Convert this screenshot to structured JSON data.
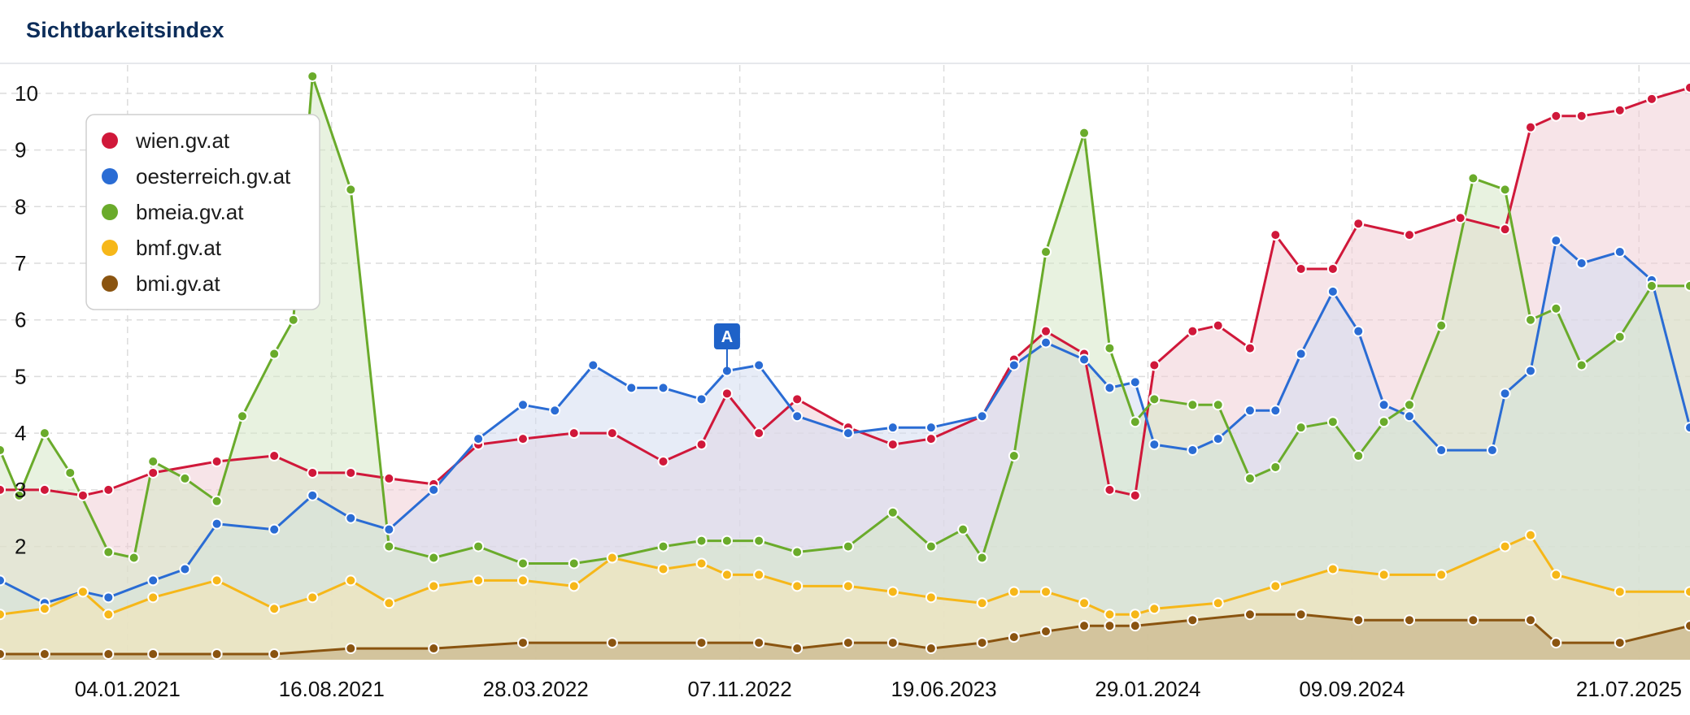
{
  "header": {
    "title": "Sichtbarkeitsindex"
  },
  "chart_data": {
    "type": "area",
    "title": "Sichtbarkeitsindex",
    "xlabel": "",
    "ylabel": "",
    "x_start": "2020-08-17",
    "x_end": "2025-09-15",
    "x_ticks": [
      "04.01.2021",
      "16.08.2021",
      "28.03.2022",
      "07.11.2022",
      "19.06.2023",
      "29.01.2024",
      "09.09.2024",
      "21.07.2025"
    ],
    "y_ticks": [
      2,
      3,
      4,
      5,
      6,
      7,
      8,
      9,
      10
    ],
    "ylim": [
      0,
      10.5
    ],
    "grid": true,
    "legend_position": "top-left",
    "annotations": [
      {
        "label": "A",
        "date": "2022-10-24",
        "series": "oesterreich.gv.at"
      }
    ],
    "series": [
      {
        "name": "wien.gv.at",
        "color": "#d0183a",
        "fill": "#f0cdd5",
        "points": [
          [
            "2020-08-17",
            3.0
          ],
          [
            "2020-10-05",
            3.0
          ],
          [
            "2020-11-16",
            2.9
          ],
          [
            "2020-12-14",
            3.0
          ],
          [
            "2021-02-01",
            3.3
          ],
          [
            "2021-04-12",
            3.5
          ],
          [
            "2021-06-14",
            3.6
          ],
          [
            "2021-07-26",
            3.3
          ],
          [
            "2021-09-06",
            3.3
          ],
          [
            "2021-10-18",
            3.2
          ],
          [
            "2021-12-06",
            3.1
          ],
          [
            "2022-01-24",
            3.8
          ],
          [
            "2022-03-14",
            3.9
          ],
          [
            "2022-05-09",
            4.0
          ],
          [
            "2022-06-20",
            4.0
          ],
          [
            "2022-08-15",
            3.5
          ],
          [
            "2022-09-26",
            3.8
          ],
          [
            "2022-10-24",
            4.7
          ],
          [
            "2022-11-28",
            4.0
          ],
          [
            "2023-01-09",
            4.6
          ],
          [
            "2023-03-06",
            4.1
          ],
          [
            "2023-04-24",
            3.8
          ],
          [
            "2023-06-05",
            3.9
          ],
          [
            "2023-07-31",
            4.3
          ],
          [
            "2023-09-04",
            5.3
          ],
          [
            "2023-10-09",
            5.8
          ],
          [
            "2023-11-20",
            5.4
          ],
          [
            "2023-12-18",
            3.0
          ],
          [
            "2024-01-15",
            2.9
          ],
          [
            "2024-02-05",
            5.2
          ],
          [
            "2024-03-18",
            5.8
          ],
          [
            "2024-04-15",
            5.9
          ],
          [
            "2024-05-20",
            5.5
          ],
          [
            "2024-06-17",
            7.5
          ],
          [
            "2024-07-15",
            6.9
          ],
          [
            "2024-08-19",
            6.9
          ],
          [
            "2024-09-16",
            7.7
          ],
          [
            "2024-11-11",
            7.5
          ],
          [
            "2025-01-06",
            7.8
          ],
          [
            "2025-02-24",
            7.6
          ],
          [
            "2025-03-24",
            9.4
          ],
          [
            "2025-04-21",
            9.6
          ],
          [
            "2025-05-19",
            9.6
          ],
          [
            "2025-06-30",
            9.7
          ],
          [
            "2025-08-04",
            9.9
          ],
          [
            "2025-09-15",
            10.1
          ]
        ]
      },
      {
        "name": "oesterreich.gv.at",
        "color": "#2a6cd4",
        "fill": "#d3dcf1",
        "points": [
          [
            "2020-08-17",
            1.4
          ],
          [
            "2020-10-05",
            1.0
          ],
          [
            "2020-11-16",
            1.2
          ],
          [
            "2020-12-14",
            1.1
          ],
          [
            "2021-02-01",
            1.4
          ],
          [
            "2021-03-08",
            1.6
          ],
          [
            "2021-04-12",
            2.4
          ],
          [
            "2021-06-14",
            2.3
          ],
          [
            "2021-07-26",
            2.9
          ],
          [
            "2021-09-06",
            2.5
          ],
          [
            "2021-10-18",
            2.3
          ],
          [
            "2021-12-06",
            3.0
          ],
          [
            "2022-01-24",
            3.9
          ],
          [
            "2022-03-14",
            4.5
          ],
          [
            "2022-04-18",
            4.4
          ],
          [
            "2022-05-30",
            5.2
          ],
          [
            "2022-07-11",
            4.8
          ],
          [
            "2022-08-15",
            4.8
          ],
          [
            "2022-09-26",
            4.6
          ],
          [
            "2022-10-24",
            5.1
          ],
          [
            "2022-11-28",
            5.2
          ],
          [
            "2023-01-09",
            4.3
          ],
          [
            "2023-03-06",
            4.0
          ],
          [
            "2023-04-24",
            4.1
          ],
          [
            "2023-06-05",
            4.1
          ],
          [
            "2023-07-31",
            4.3
          ],
          [
            "2023-09-04",
            5.2
          ],
          [
            "2023-10-09",
            5.6
          ],
          [
            "2023-11-20",
            5.3
          ],
          [
            "2023-12-18",
            4.8
          ],
          [
            "2024-01-15",
            4.9
          ],
          [
            "2024-02-05",
            3.8
          ],
          [
            "2024-03-18",
            3.7
          ],
          [
            "2024-04-15",
            3.9
          ],
          [
            "2024-05-20",
            4.4
          ],
          [
            "2024-06-17",
            4.4
          ],
          [
            "2024-07-15",
            5.4
          ],
          [
            "2024-08-19",
            6.5
          ],
          [
            "2024-09-16",
            5.8
          ],
          [
            "2024-10-14",
            4.5
          ],
          [
            "2024-11-11",
            4.3
          ],
          [
            "2024-12-16",
            3.7
          ],
          [
            "2025-02-10",
            3.7
          ],
          [
            "2025-02-24",
            4.7
          ],
          [
            "2025-03-24",
            5.1
          ],
          [
            "2025-04-21",
            7.4
          ],
          [
            "2025-05-19",
            7.0
          ],
          [
            "2025-06-30",
            7.2
          ],
          [
            "2025-08-04",
            6.7
          ],
          [
            "2025-09-15",
            4.1
          ]
        ]
      },
      {
        "name": "bmeia.gv.at",
        "color": "#6aab2b",
        "fill": "#d6e8c6",
        "points": [
          [
            "2020-08-17",
            3.7
          ],
          [
            "2020-09-07",
            2.9
          ],
          [
            "2020-10-05",
            4.0
          ],
          [
            "2020-11-02",
            3.3
          ],
          [
            "2020-12-14",
            1.9
          ],
          [
            "2021-01-11",
            1.8
          ],
          [
            "2021-02-01",
            3.5
          ],
          [
            "2021-03-08",
            3.2
          ],
          [
            "2021-04-12",
            2.8
          ],
          [
            "2021-05-10",
            4.3
          ],
          [
            "2021-06-14",
            5.4
          ],
          [
            "2021-07-05",
            6.0
          ],
          [
            "2021-07-26",
            10.3
          ],
          [
            "2021-09-06",
            8.3
          ],
          [
            "2021-10-18",
            2.0
          ],
          [
            "2021-12-06",
            1.8
          ],
          [
            "2022-01-24",
            2.0
          ],
          [
            "2022-03-14",
            1.7
          ],
          [
            "2022-05-09",
            1.7
          ],
          [
            "2022-06-20",
            1.8
          ],
          [
            "2022-08-15",
            2.0
          ],
          [
            "2022-09-26",
            2.1
          ],
          [
            "2022-10-24",
            2.1
          ],
          [
            "2022-11-28",
            2.1
          ],
          [
            "2023-01-09",
            1.9
          ],
          [
            "2023-03-06",
            2.0
          ],
          [
            "2023-04-24",
            2.6
          ],
          [
            "2023-06-05",
            2.0
          ],
          [
            "2023-07-10",
            2.3
          ],
          [
            "2023-07-31",
            1.8
          ],
          [
            "2023-09-04",
            3.6
          ],
          [
            "2023-10-09",
            7.2
          ],
          [
            "2023-11-20",
            9.3
          ],
          [
            "2023-12-18",
            5.5
          ],
          [
            "2024-01-15",
            4.2
          ],
          [
            "2024-02-05",
            4.6
          ],
          [
            "2024-03-18",
            4.5
          ],
          [
            "2024-04-15",
            4.5
          ],
          [
            "2024-05-20",
            3.2
          ],
          [
            "2024-06-17",
            3.4
          ],
          [
            "2024-07-15",
            4.1
          ],
          [
            "2024-08-19",
            4.2
          ],
          [
            "2024-09-16",
            3.6
          ],
          [
            "2024-10-14",
            4.2
          ],
          [
            "2024-11-11",
            4.5
          ],
          [
            "2024-12-16",
            5.9
          ],
          [
            "2025-01-20",
            8.5
          ],
          [
            "2025-02-24",
            8.3
          ],
          [
            "2025-03-24",
            6.0
          ],
          [
            "2025-04-21",
            6.2
          ],
          [
            "2025-05-19",
            5.2
          ],
          [
            "2025-06-30",
            5.7
          ],
          [
            "2025-08-04",
            6.6
          ],
          [
            "2025-09-15",
            6.6
          ]
        ]
      },
      {
        "name": "bmf.gv.at",
        "color": "#f6b719",
        "fill": "#f6e6b6",
        "points": [
          [
            "2020-08-17",
            0.8
          ],
          [
            "2020-10-05",
            0.9
          ],
          [
            "2020-11-16",
            1.2
          ],
          [
            "2020-12-14",
            0.8
          ],
          [
            "2021-02-01",
            1.1
          ],
          [
            "2021-04-12",
            1.4
          ],
          [
            "2021-06-14",
            0.9
          ],
          [
            "2021-07-26",
            1.1
          ],
          [
            "2021-09-06",
            1.4
          ],
          [
            "2021-10-18",
            1.0
          ],
          [
            "2021-12-06",
            1.3
          ],
          [
            "2022-01-24",
            1.4
          ],
          [
            "2022-03-14",
            1.4
          ],
          [
            "2022-05-09",
            1.3
          ],
          [
            "2022-06-20",
            1.8
          ],
          [
            "2022-08-15",
            1.6
          ],
          [
            "2022-09-26",
            1.7
          ],
          [
            "2022-10-24",
            1.5
          ],
          [
            "2022-11-28",
            1.5
          ],
          [
            "2023-01-09",
            1.3
          ],
          [
            "2023-03-06",
            1.3
          ],
          [
            "2023-04-24",
            1.2
          ],
          [
            "2023-06-05",
            1.1
          ],
          [
            "2023-07-31",
            1.0
          ],
          [
            "2023-09-04",
            1.2
          ],
          [
            "2023-10-09",
            1.2
          ],
          [
            "2023-11-20",
            1.0
          ],
          [
            "2023-12-18",
            0.8
          ],
          [
            "2024-01-15",
            0.8
          ],
          [
            "2024-02-05",
            0.9
          ],
          [
            "2024-04-15",
            1.0
          ],
          [
            "2024-06-17",
            1.3
          ],
          [
            "2024-08-19",
            1.6
          ],
          [
            "2024-10-14",
            1.5
          ],
          [
            "2024-12-16",
            1.5
          ],
          [
            "2025-02-24",
            2.0
          ],
          [
            "2025-03-24",
            2.2
          ],
          [
            "2025-04-21",
            1.5
          ],
          [
            "2025-06-30",
            1.2
          ],
          [
            "2025-09-15",
            1.2
          ]
        ]
      },
      {
        "name": "bmi.gv.at",
        "color": "#8a5410",
        "fill": "#bfa97c",
        "points": [
          [
            "2020-08-17",
            0.1
          ],
          [
            "2020-10-05",
            0.1
          ],
          [
            "2020-12-14",
            0.1
          ],
          [
            "2021-02-01",
            0.1
          ],
          [
            "2021-04-12",
            0.1
          ],
          [
            "2021-06-14",
            0.1
          ],
          [
            "2021-09-06",
            0.2
          ],
          [
            "2021-12-06",
            0.2
          ],
          [
            "2022-03-14",
            0.3
          ],
          [
            "2022-06-20",
            0.3
          ],
          [
            "2022-09-26",
            0.3
          ],
          [
            "2022-11-28",
            0.3
          ],
          [
            "2023-01-09",
            0.2
          ],
          [
            "2023-03-06",
            0.3
          ],
          [
            "2023-04-24",
            0.3
          ],
          [
            "2023-06-05",
            0.2
          ],
          [
            "2023-07-31",
            0.3
          ],
          [
            "2023-09-04",
            0.4
          ],
          [
            "2023-10-09",
            0.5
          ],
          [
            "2023-11-20",
            0.6
          ],
          [
            "2023-12-18",
            0.6
          ],
          [
            "2024-01-15",
            0.6
          ],
          [
            "2024-03-18",
            0.7
          ],
          [
            "2024-05-20",
            0.8
          ],
          [
            "2024-07-15",
            0.8
          ],
          [
            "2024-09-16",
            0.7
          ],
          [
            "2024-11-11",
            0.7
          ],
          [
            "2025-01-20",
            0.7
          ],
          [
            "2025-03-24",
            0.7
          ],
          [
            "2025-04-21",
            0.3
          ],
          [
            "2025-06-30",
            0.3
          ],
          [
            "2025-09-15",
            0.6
          ]
        ]
      }
    ]
  }
}
